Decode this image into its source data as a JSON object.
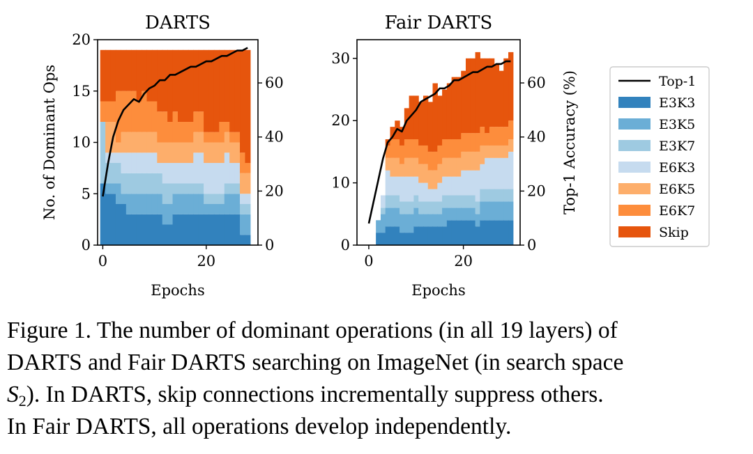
{
  "colors": {
    "E3K3": "#3282bd",
    "E3K5": "#6baed6",
    "E3K7": "#9ecae1",
    "E6K3": "#c6dbef",
    "E6K5": "#fdae6b",
    "E6K7": "#fd8d3c",
    "Skip": "#e6550d",
    "Top-1": "#000000"
  },
  "legend": {
    "entries": [
      "Top-1",
      "E3K3",
      "E3K5",
      "E3K7",
      "E6K3",
      "E6K5",
      "E6K7",
      "Skip"
    ]
  },
  "chart_data": [
    {
      "type": "area",
      "title": "DARTS",
      "xlabel": "Epochs",
      "ylabel": "No. of Dominant Ops",
      "y2label": "",
      "xlim": [
        -1,
        30
      ],
      "ylim": [
        0,
        20
      ],
      "y2lim": [
        0,
        76
      ],
      "xticks": [
        0,
        20
      ],
      "yticks": [
        0,
        5,
        10,
        15,
        20
      ],
      "y2ticks": [
        0,
        20,
        40,
        60
      ],
      "epochs": [
        0,
        1,
        2,
        3,
        4,
        5,
        6,
        7,
        8,
        9,
        10,
        11,
        12,
        13,
        14,
        15,
        16,
        17,
        18,
        19,
        20,
        21,
        22,
        23,
        24,
        25,
        26,
        27,
        28
      ],
      "series": [
        {
          "name": "E3K3",
          "values": [
            6,
            5,
            5,
            4,
            4,
            3,
            3,
            3,
            3,
            3,
            3,
            3,
            2,
            2,
            3,
            3,
            3,
            3,
            3,
            3,
            3,
            3,
            3,
            3,
            3,
            3,
            3,
            1,
            1
          ]
        },
        {
          "name": "E3K5",
          "values": [
            0,
            1,
            1,
            2,
            1,
            2,
            2,
            2,
            2,
            2,
            2,
            2,
            2,
            2,
            2,
            2,
            2,
            2,
            2,
            2,
            1,
            1,
            1,
            1,
            2,
            2,
            2,
            2,
            2
          ]
        },
        {
          "name": "E3K7",
          "values": [
            6,
            2,
            2,
            2,
            2,
            2,
            2,
            2,
            2,
            2,
            2,
            2,
            2,
            2,
            1,
            1,
            1,
            1,
            1,
            1,
            1,
            1,
            1,
            1,
            1,
            1,
            1,
            1,
            1
          ]
        },
        {
          "name": "E6K3",
          "values": [
            0,
            1,
            1,
            1,
            2,
            2,
            2,
            2,
            2,
            2,
            2,
            1,
            2,
            2,
            2,
            2,
            2,
            2,
            3,
            3,
            3,
            3,
            3,
            3,
            3,
            2,
            2,
            1,
            1
          ]
        },
        {
          "name": "E6K5",
          "values": [
            0,
            3,
            3,
            1,
            2,
            2,
            2,
            2,
            2,
            2,
            2,
            2,
            2,
            2,
            2,
            2,
            2,
            2,
            2,
            2,
            2,
            2,
            2,
            2,
            2,
            2,
            2,
            2,
            2
          ]
        },
        {
          "name": "E6K7",
          "values": [
            2,
            2,
            2,
            5,
            4,
            4,
            4,
            3,
            4,
            3,
            3,
            3,
            3,
            2,
            3,
            2,
            2,
            2,
            2,
            2,
            1,
            1,
            1,
            2,
            1,
            1,
            1,
            2,
            1
          ]
        },
        {
          "name": "Skip",
          "values": [
            5,
            5,
            5,
            4,
            4,
            4,
            4,
            5,
            4,
            5,
            5,
            6,
            6,
            7,
            6,
            7,
            7,
            7,
            6,
            6,
            8,
            8,
            8,
            7,
            7,
            8,
            8,
            10,
            11
          ]
        },
        {
          "name": "Top-1",
          "axis": "right",
          "values": [
            18,
            30,
            40,
            46,
            50,
            52,
            54,
            53,
            56,
            58,
            59,
            61,
            61,
            63,
            63,
            64,
            65,
            66,
            66,
            67,
            68,
            68,
            69,
            70,
            70,
            71,
            72,
            72,
            73
          ]
        }
      ]
    },
    {
      "type": "area",
      "title": "Fair DARTS",
      "xlabel": "Epochs",
      "ylabel": "",
      "y2label": "Top-1 Accuracy (%)",
      "xlim": [
        -2.5,
        32
      ],
      "ylim": [
        0,
        33
      ],
      "y2lim": [
        0,
        76
      ],
      "xticks": [
        0,
        20
      ],
      "yticks": [
        0,
        10,
        20,
        30
      ],
      "y2ticks": [
        0,
        20,
        40,
        60
      ],
      "epochs": [
        0,
        1,
        2,
        3,
        4,
        5,
        6,
        7,
        8,
        9,
        10,
        11,
        12,
        13,
        14,
        15,
        16,
        17,
        18,
        19,
        20,
        21,
        22,
        23,
        24,
        25,
        26,
        27,
        28,
        29,
        30
      ],
      "series": [
        {
          "name": "E3K3",
          "values": [
            0,
            0,
            2,
            2,
            3,
            3,
            3,
            2,
            2,
            2,
            3,
            3,
            3,
            3,
            3,
            3,
            3,
            4,
            4,
            4,
            4,
            4,
            4,
            3,
            4,
            4,
            4,
            4,
            4,
            4,
            4
          ]
        },
        {
          "name": "E3K5",
          "values": [
            0,
            0,
            2,
            3,
            3,
            3,
            3,
            3,
            3,
            3,
            3,
            2,
            2,
            2,
            2,
            2,
            3,
            2,
            2,
            2,
            2,
            2,
            2,
            2,
            3,
            3,
            3,
            3,
            3,
            3,
            3
          ]
        },
        {
          "name": "E3K7",
          "values": [
            0,
            0,
            0,
            1,
            2,
            2,
            2,
            2,
            2,
            2,
            2,
            2,
            2,
            2,
            2,
            2,
            2,
            2,
            2,
            2,
            2,
            2,
            2,
            2,
            2,
            2,
            2,
            2,
            2,
            2,
            2
          ]
        },
        {
          "name": "E6K3",
          "values": [
            0,
            0,
            0,
            2,
            4,
            3,
            3,
            4,
            4,
            4,
            3,
            3,
            3,
            2,
            2,
            3,
            3,
            3,
            3,
            3,
            4,
            4,
            4,
            5,
            4,
            5,
            5,
            5,
            5,
            5,
            6
          ]
        },
        {
          "name": "E6K5",
          "values": [
            0,
            0,
            0,
            0,
            2,
            3,
            3,
            2,
            3,
            3,
            3,
            3,
            3,
            3,
            3,
            3,
            3,
            3,
            3,
            3,
            3,
            3,
            3,
            3,
            3,
            2,
            2,
            2,
            2,
            2,
            2
          ]
        },
        {
          "name": "E6K7",
          "values": [
            0,
            0,
            0,
            0,
            2,
            3,
            3,
            3,
            3,
            3,
            3,
            3,
            3,
            3,
            3,
            3,
            3,
            3,
            3,
            3,
            3,
            3,
            3,
            3,
            3,
            2,
            3,
            3,
            3,
            3,
            3
          ]
        },
        {
          "name": "Skip",
          "values": [
            0,
            0,
            0,
            0,
            1,
            2,
            3,
            3,
            5,
            7,
            7,
            7,
            8,
            8,
            11,
            8,
            8,
            9,
            10,
            10,
            10,
            12,
            12,
            13,
            11,
            12,
            11,
            10,
            9,
            11,
            11
          ]
        },
        {
          "name": "Top-1",
          "axis": "right",
          "values": [
            8,
            16,
            24,
            32,
            38,
            40,
            43,
            42,
            46,
            48,
            50,
            53,
            54,
            55,
            56,
            58,
            58,
            59,
            61,
            61,
            62,
            63,
            64,
            64,
            65,
            66,
            66,
            67,
            67,
            68,
            68
          ]
        }
      ]
    }
  ],
  "caption": {
    "line1": "Figure 1. The number of dominant operations (in all 19 layers) of",
    "line2": "DARTS and Fair DARTS searching on ImageNet (in search space",
    "line3_sym": "S",
    "line3_sub": "2",
    "line3_rest": "). In DARTS, skip connections incrementally suppress others.",
    "line4": "In Fair DARTS, all operations develop independently."
  }
}
